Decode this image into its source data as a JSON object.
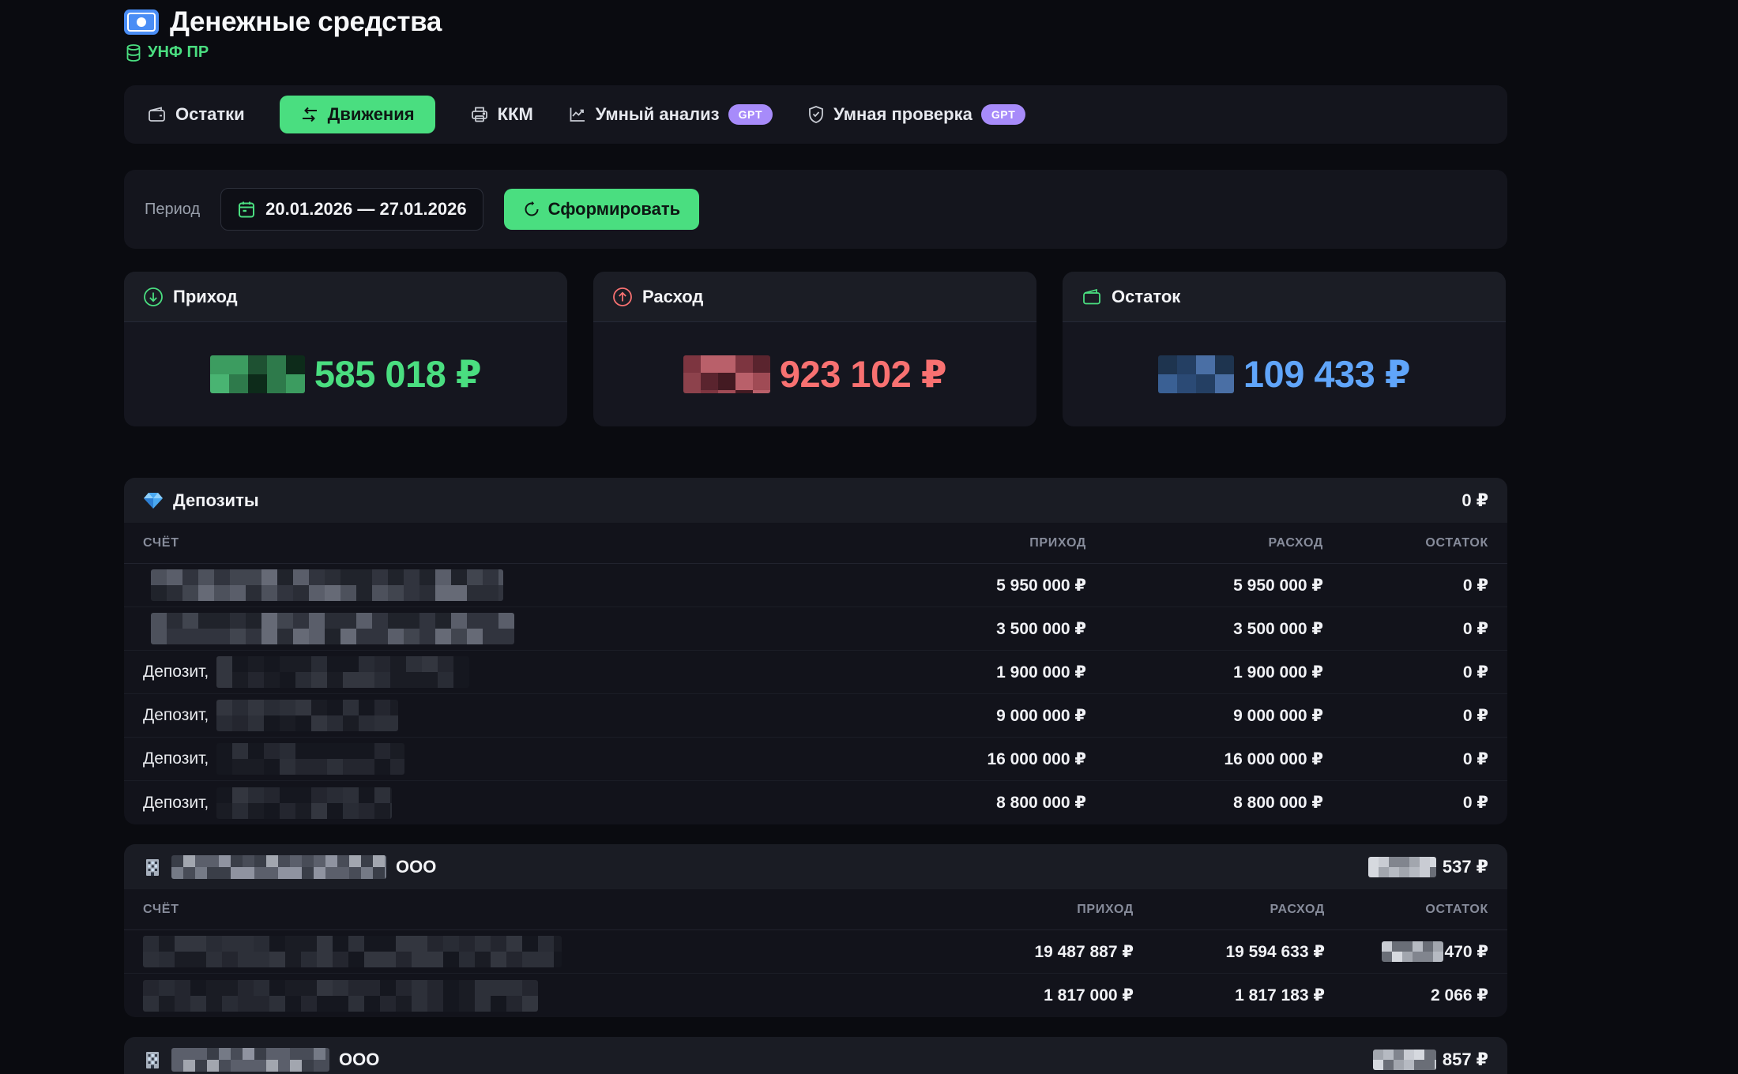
{
  "header": {
    "title": "Денежные средства",
    "subtitle": "УНФ ПР"
  },
  "tabs": {
    "items": [
      {
        "label": "Остатки"
      },
      {
        "label": "Движения"
      },
      {
        "label": "ККМ"
      },
      {
        "label": "Умный анализ",
        "badge": "GPT"
      },
      {
        "label": "Умная проверка",
        "badge": "GPT"
      }
    ]
  },
  "period": {
    "label": "Период",
    "range": "20.01.2026 — 27.01.2026",
    "generate_label": "Сформировать"
  },
  "summary": {
    "income": {
      "label": "Приход",
      "value": "585 018 ₽"
    },
    "expense": {
      "label": "Расход",
      "value": "923 102 ₽"
    },
    "balance": {
      "label": "Остаток",
      "value": "109 433 ₽"
    }
  },
  "columns": {
    "account": "СЧЁТ",
    "income": "ПРИХОД",
    "expense": "РАСХОД",
    "balance": "ОСТАТОК"
  },
  "deposits": {
    "title": "Депозиты",
    "total": "0 ₽",
    "rows": [
      {
        "prefix": "",
        "income": "5 950 000 ₽",
        "expense": "5 950 000 ₽",
        "balance": "0 ₽"
      },
      {
        "prefix": "",
        "income": "3 500 000 ₽",
        "expense": "3 500 000 ₽",
        "balance": "0 ₽"
      },
      {
        "prefix": "Депозит,",
        "income": "1 900 000 ₽",
        "expense": "1 900 000 ₽",
        "balance": "0 ₽"
      },
      {
        "prefix": "Депозит,",
        "income": "9 000 000 ₽",
        "expense": "9 000 000 ₽",
        "balance": "0 ₽"
      },
      {
        "prefix": "Депозит,",
        "income": "16 000 000 ₽",
        "expense": "16 000 000 ₽",
        "balance": "0 ₽"
      },
      {
        "prefix": "Депозит,",
        "income": "8 800 000 ₽",
        "expense": "8 800 000 ₽",
        "balance": "0 ₽"
      }
    ]
  },
  "company1": {
    "suffix": "ООО",
    "total": "537 ₽",
    "rows": [
      {
        "income": "19 487 887 ₽",
        "expense": "19 594 633 ₽",
        "balance": "470 ₽"
      },
      {
        "income": "1 817 000 ₽",
        "expense": "1 817 183 ₽",
        "balance": "2 066 ₽"
      }
    ]
  },
  "company2": {
    "suffix": "ООО",
    "total": "857 ₽"
  },
  "colors": {
    "accent_green": "#4ade80",
    "value_red": "#f87171",
    "value_blue": "#60a5fa",
    "badge_purple": "#a78bfa"
  }
}
